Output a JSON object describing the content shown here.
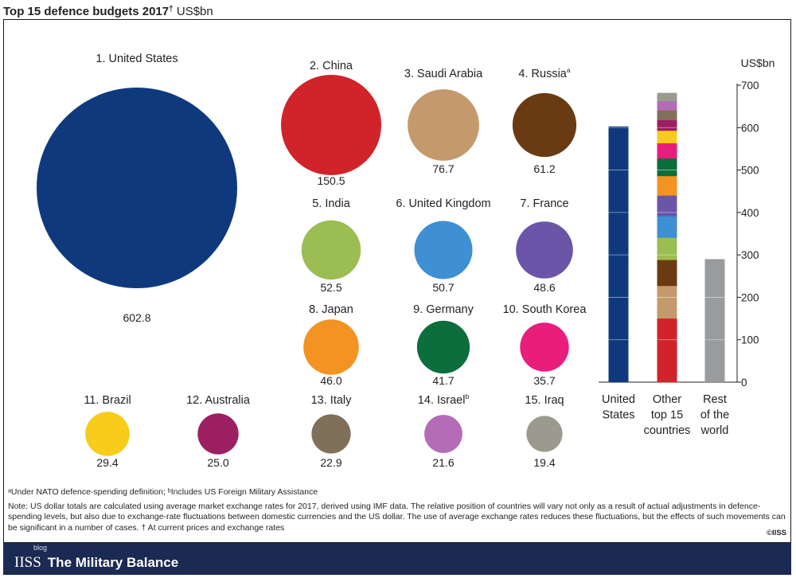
{
  "header": {
    "title_bold": "Top 15 defence budgets 2017",
    "title_dagger": "†",
    "title_unit": " US$bn"
  },
  "chart_data": [
    {
      "type": "bubble",
      "title": "Top 15 defence budgets 2017† US$bn",
      "unit": "US$bn",
      "items": [
        {
          "rank": "1.",
          "country": "United States",
          "value": 602.8,
          "value_label": "602.8",
          "color": "#0e3a7d"
        },
        {
          "rank": "2.",
          "country": "China",
          "value": 150.5,
          "value_label": "150.5",
          "color": "#d1232a"
        },
        {
          "rank": "3.",
          "country": "Saudi Arabia",
          "value": 76.7,
          "value_label": "76.7",
          "color": "#c49a6c"
        },
        {
          "rank": "4.",
          "country": "Russia",
          "sup": "a",
          "value": 61.2,
          "value_label": "61.2",
          "color": "#6a3b12"
        },
        {
          "rank": "5.",
          "country": "India",
          "value": 52.5,
          "value_label": "52.5",
          "color": "#9cbd52"
        },
        {
          "rank": "6.",
          "country": "United Kingdom",
          "value": 50.7,
          "value_label": "50.7",
          "color": "#3e8fd4"
        },
        {
          "rank": "7.",
          "country": "France",
          "value": 48.6,
          "value_label": "48.6",
          "color": "#6a55a8"
        },
        {
          "rank": "8.",
          "country": "Japan",
          "value": 46.0,
          "value_label": "46.0",
          "color": "#f29322"
        },
        {
          "rank": "9.",
          "country": "Germany",
          "value": 41.7,
          "value_label": "41.7",
          "color": "#0b6e3c"
        },
        {
          "rank": "10.",
          "country": "South Korea",
          "value": 35.7,
          "value_label": "35.7",
          "color": "#e91d7c"
        },
        {
          "rank": "11.",
          "country": "Brazil",
          "value": 29.4,
          "value_label": "29.4",
          "color": "#f7cc1a"
        },
        {
          "rank": "12.",
          "country": "Australia",
          "value": 25.0,
          "value_label": "25.0",
          "color": "#9c1f61"
        },
        {
          "rank": "13.",
          "country": "Italy",
          "value": 22.9,
          "value_label": "22.9",
          "color": "#7f705a"
        },
        {
          "rank": "14.",
          "country": "Israel",
          "sup": "b",
          "value": 21.6,
          "value_label": "21.6",
          "color": "#b46cb6"
        },
        {
          "rank": "15.",
          "country": "Iraq",
          "value": 19.4,
          "value_label": "19.4",
          "color": "#9b9a8e"
        }
      ]
    },
    {
      "type": "stacked_bar",
      "ylabel": "US$bn",
      "ylim": [
        0,
        700
      ],
      "yticks": [
        0,
        100,
        200,
        300,
        400,
        500,
        600,
        700
      ],
      "bars": [
        {
          "label_lines": [
            "United",
            "States"
          ],
          "stack": "us"
        },
        {
          "label_lines": [
            "Other",
            "top 15",
            "countries"
          ],
          "stack": "others"
        },
        {
          "label_lines": [
            "Rest",
            "of the",
            "world"
          ],
          "value": 290,
          "color": "#9a9b9d"
        }
      ]
    }
  ],
  "footnotes": {
    "fn1": "ᵃUnder NATO defence-spending definition; ᵇIncludes US Foreign Military Assistance",
    "note": "Note: US dollar totals are calculated using average market exchange rates for 2017, derived using IMF data. The relative position of countries will vary not only as a result of actual adjustments in defence-spending levels, but also due to exchange-rate fluctuations between domestic currencies and the US dollar. The use of average exchange rates reduces these fluctuations, but the effects of such movements can be significant in a number of cases. † At current prices and exchange rates",
    "copyright": "©IISS"
  },
  "footer": {
    "blog": "blog",
    "iiss": "IISS",
    "brand": "The Military Balance",
    "color": "#1b2a52"
  }
}
